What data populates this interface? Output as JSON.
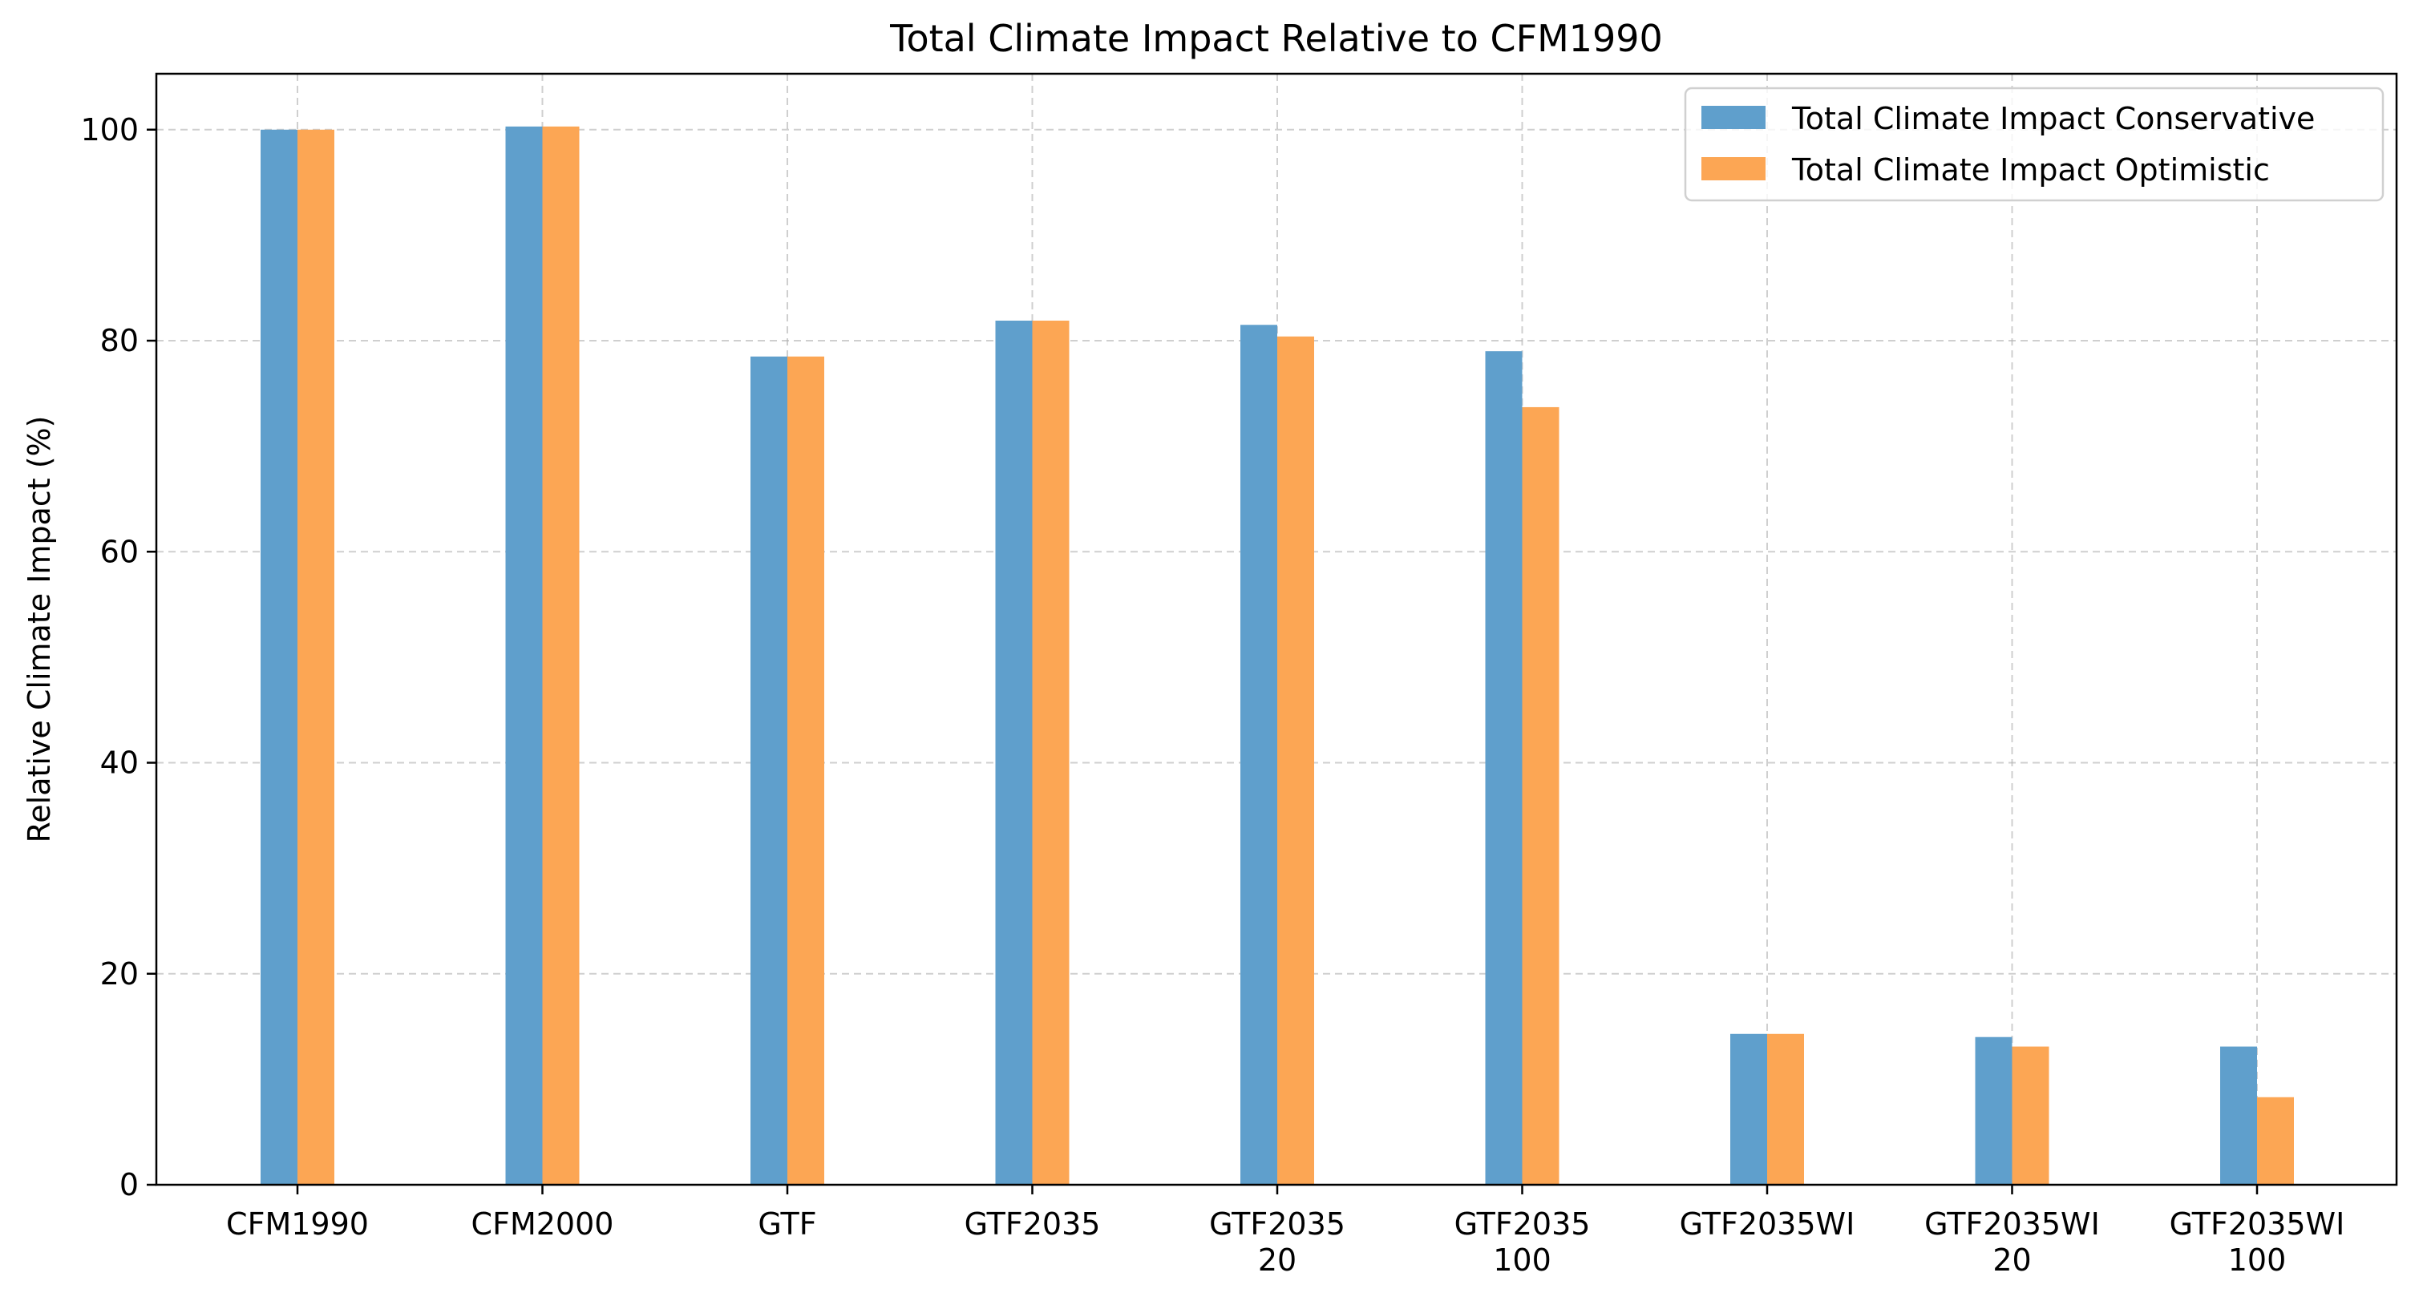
{
  "chart_data": {
    "type": "bar",
    "title": "Total Climate Impact Relative to CFM1990",
    "xlabel": "",
    "ylabel": "Relative Climate Impact (%)",
    "categories": [
      [
        "CFM1990"
      ],
      [
        "CFM2000"
      ],
      [
        "GTF"
      ],
      [
        "GTF2035"
      ],
      [
        "GTF2035",
        "20"
      ],
      [
        "GTF2035",
        "100"
      ],
      [
        "GTF2035WI"
      ],
      [
        "GTF2035WI",
        "20"
      ],
      [
        "GTF2035WI",
        "100"
      ]
    ],
    "series": [
      {
        "name": "Total Climate Impact Conservative",
        "color": "#5f9fcc",
        "values": [
          100.0,
          100.3,
          78.5,
          81.9,
          81.5,
          79.0,
          14.3,
          14.0,
          13.1
        ]
      },
      {
        "name": "Total Climate Impact Optimistic",
        "color": "#fca654",
        "values": [
          100.0,
          100.3,
          78.5,
          81.9,
          80.4,
          73.7,
          14.3,
          13.1,
          8.3
        ]
      }
    ],
    "yticks": [
      0,
      20,
      40,
      60,
      80,
      100
    ],
    "ylim": [
      0,
      105.3
    ],
    "grid": true,
    "legend_position": "top-right"
  }
}
